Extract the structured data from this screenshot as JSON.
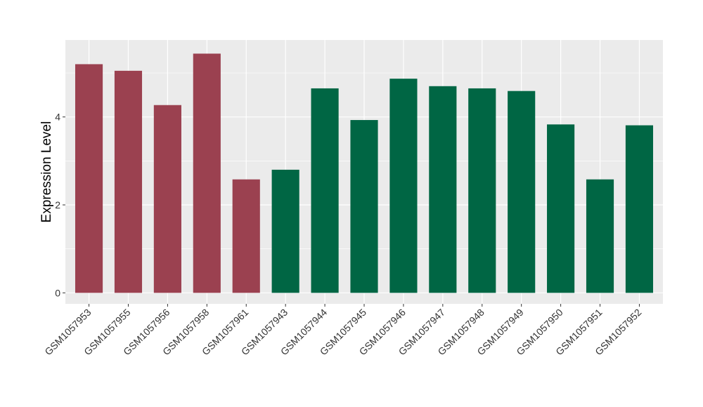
{
  "chart_data": {
    "type": "bar",
    "ylabel": "Expression Level",
    "xlabel": "",
    "ylim": [
      -0.25,
      5.75
    ],
    "yticks": [
      0,
      2,
      4
    ],
    "grid": true,
    "background": "#EBEBEB",
    "grid_color": "#FFFFFF",
    "categories": [
      "GSM1057953",
      "GSM1057955",
      "GSM1057956",
      "GSM1057958",
      "GSM1057961",
      "GSM1057943",
      "GSM1057944",
      "GSM1057945",
      "GSM1057946",
      "GSM1057947",
      "GSM1057948",
      "GSM1057949",
      "GSM1057950",
      "GSM1057951",
      "GSM1057952"
    ],
    "values": [
      5.2,
      5.05,
      4.27,
      5.44,
      2.58,
      2.8,
      4.65,
      3.93,
      4.87,
      4.7,
      4.65,
      4.59,
      3.83,
      2.58,
      3.81
    ],
    "bar_colors": [
      "#9B4150",
      "#9B4150",
      "#9B4150",
      "#9B4150",
      "#9B4150",
      "#006644",
      "#006644",
      "#006644",
      "#006644",
      "#006644",
      "#006644",
      "#006644",
      "#006644",
      "#006644",
      "#006644"
    ]
  }
}
